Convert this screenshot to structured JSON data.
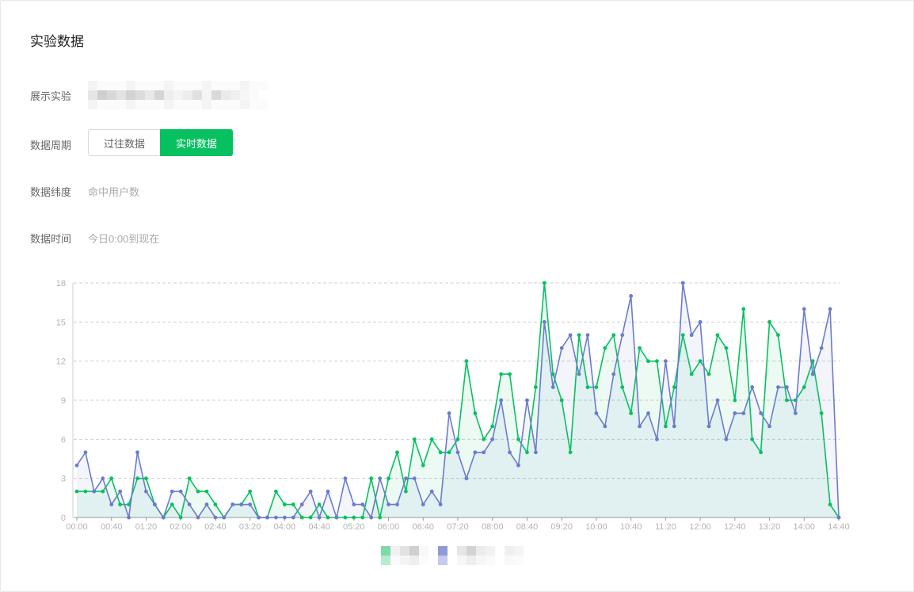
{
  "page": {
    "title": "实验数据"
  },
  "filters": {
    "experiment_label": "展示实验",
    "period_label": "数据周期",
    "period_options": [
      "过往数据",
      "实时数据"
    ],
    "period_selected": "实时数据",
    "dimension_label": "数据纬度",
    "dimension_value": "命中用户数",
    "time_label": "数据时间",
    "time_value": "今日0:00到现在"
  },
  "colors": {
    "accent": "#07c160",
    "series_green": "#07c160",
    "series_blue": "#6b7ccc"
  },
  "chart_data": {
    "type": "line",
    "ylim": [
      0,
      18
    ],
    "yticks": [
      0,
      3,
      6,
      9,
      12,
      15,
      18
    ],
    "xticks": [
      "00:00",
      "00:40",
      "01:20",
      "02:00",
      "02:40",
      "03:20",
      "04:00",
      "04:40",
      "05:20",
      "06:00",
      "06:40",
      "07:20",
      "08:00",
      "08:40",
      "09:20",
      "10:00",
      "10:40",
      "11:20",
      "12:00",
      "12:40",
      "13:20",
      "14:00",
      "14:40"
    ],
    "x_start_minutes": 0,
    "x_step_minutes": 10,
    "grid": true,
    "series": [
      {
        "color": "#07c160",
        "values": [
          2,
          2,
          2,
          2,
          3,
          1,
          1,
          3,
          3,
          1,
          0,
          1,
          0,
          3,
          2,
          2,
          1,
          0,
          1,
          1,
          2,
          0,
          0,
          2,
          1,
          1,
          0,
          0,
          1,
          0,
          0,
          0,
          0,
          0,
          3,
          0,
          3,
          5,
          2,
          6,
          4,
          6,
          5,
          5,
          6,
          12,
          8,
          6,
          7,
          11,
          11,
          6,
          5,
          10,
          18,
          11,
          9,
          5,
          14,
          10,
          10,
          13,
          14,
          10,
          8,
          13,
          12,
          12,
          7,
          10,
          14,
          11,
          12,
          11,
          14,
          13,
          9,
          16,
          6,
          5,
          15,
          14,
          9,
          9,
          10,
          12,
          8,
          1,
          0
        ]
      },
      {
        "color": "#6b7ccc",
        "values": [
          4,
          5,
          2,
          3,
          1,
          2,
          0,
          5,
          2,
          1,
          0,
          2,
          2,
          1,
          0,
          1,
          0,
          0,
          1,
          1,
          1,
          0,
          0,
          0,
          0,
          0,
          1,
          2,
          0,
          2,
          0,
          3,
          1,
          1,
          0,
          3,
          1,
          1,
          3,
          3,
          1,
          2,
          1,
          8,
          5,
          3,
          5,
          5,
          6,
          9,
          5,
          4,
          9,
          5,
          15,
          10,
          13,
          14,
          11,
          14,
          8,
          7,
          11,
          14,
          17,
          7,
          8,
          6,
          12,
          7,
          18,
          14,
          15,
          7,
          9,
          6,
          8,
          8,
          10,
          8,
          7,
          10,
          10,
          8,
          16,
          11,
          13,
          16,
          0
        ]
      }
    ]
  }
}
